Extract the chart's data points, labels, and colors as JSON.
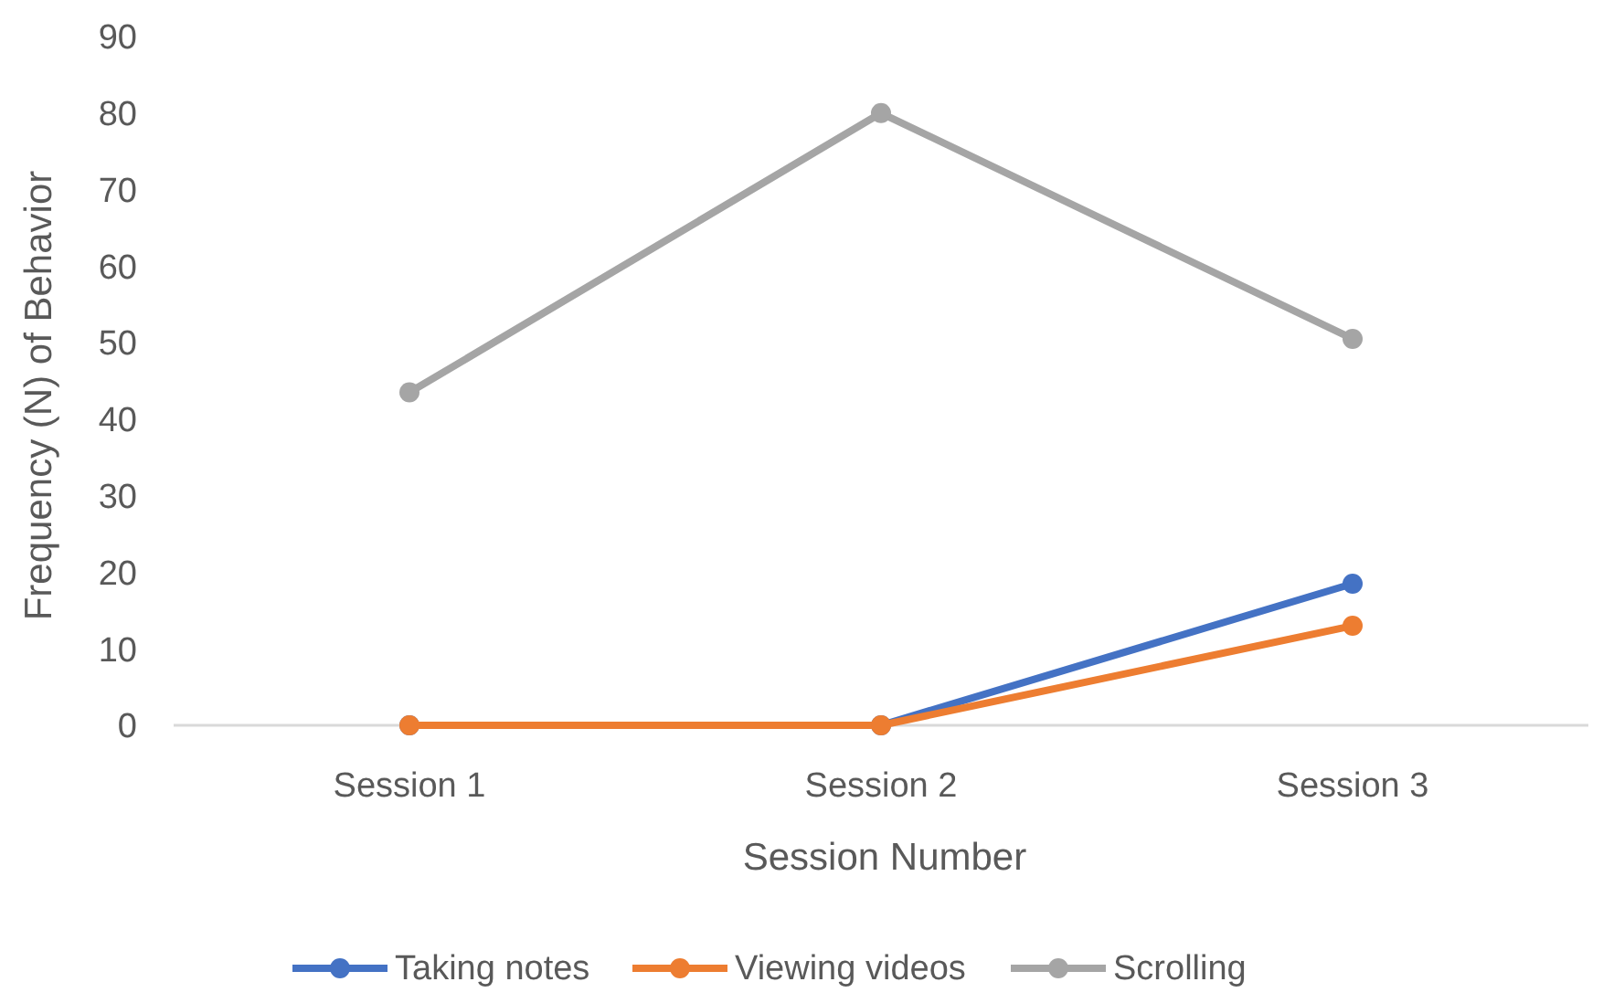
{
  "chart_data": {
    "type": "line",
    "xlabel": "Session Number",
    "ylabel": "Frequency (N) of Behavior",
    "categories": [
      "Session 1",
      "Session 2",
      "Session 3"
    ],
    "series": [
      {
        "name": "Taking notes",
        "color": "#4472c4",
        "values": [
          0,
          0,
          18.5
        ]
      },
      {
        "name": "Viewing videos",
        "color": "#ed7d31",
        "values": [
          0,
          0,
          13
        ]
      },
      {
        "name": "Scrolling",
        "color": "#a5a5a5",
        "values": [
          43.5,
          80,
          50.5
        ]
      }
    ],
    "ylim": [
      0,
      90
    ],
    "yticks": [
      0,
      10,
      20,
      30,
      40,
      50,
      60,
      70,
      80,
      90
    ],
    "legend": "bottom",
    "marker": "circle",
    "line_style": "solid"
  }
}
